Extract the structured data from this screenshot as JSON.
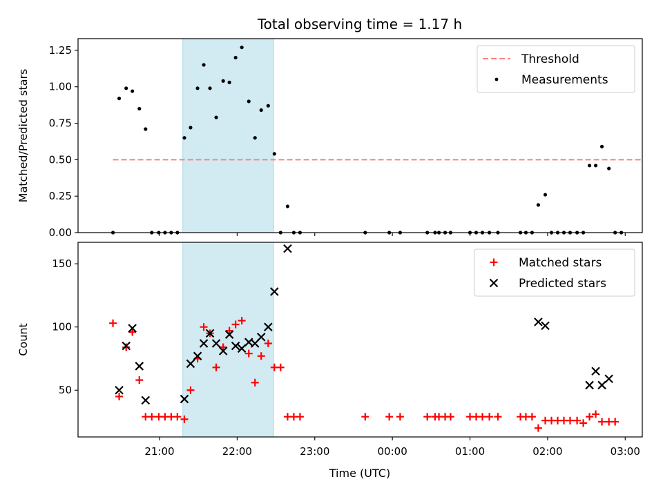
{
  "chart_data": {
    "title": "Total observing time = 1.17 h",
    "xlabel": "Time (UTC)",
    "x_unit": "hours UTC, values above 24 are after midnight",
    "xticks": [
      {
        "value": 21,
        "label": "21:00"
      },
      {
        "value": 22,
        "label": "22:00"
      },
      {
        "value": 23,
        "label": "23:00"
      },
      {
        "value": 24,
        "label": "00:00"
      },
      {
        "value": 25,
        "label": "01:00"
      },
      {
        "value": 26,
        "label": "02:00"
      },
      {
        "value": 27,
        "label": "03:00"
      }
    ],
    "xlim": [
      19.95,
      27.22
    ],
    "shaded_window": [
      21.3,
      22.47
    ],
    "shade_color": "#add8e6",
    "panels": [
      {
        "type": "scatter",
        "ylabel": "Matched/Predicted stars",
        "ylim": [
          0,
          1.33
        ],
        "yticks": [
          {
            "value": 0,
            "label": "0.00"
          },
          {
            "value": 0.25,
            "label": "0.25"
          },
          {
            "value": 0.5,
            "label": "0.50"
          },
          {
            "value": 0.75,
            "label": "0.75"
          },
          {
            "value": 1.0,
            "label": "1.00"
          },
          {
            "value": 1.25,
            "label": "1.25"
          }
        ],
        "threshold": {
          "name": "Threshold",
          "value": 0.5,
          "x_range": [
            20.4,
            27.3
          ],
          "color": "#ff7f7f"
        },
        "series": [
          {
            "name": "Measurements",
            "marker": "dot",
            "color": "#000000",
            "points": [
              [
                20.4,
                0
              ],
              [
                20.48,
                0.92
              ],
              [
                20.57,
                0.99
              ],
              [
                20.65,
                0.97
              ],
              [
                20.74,
                0.85
              ],
              [
                20.82,
                0.71
              ],
              [
                20.9,
                0
              ],
              [
                20.99,
                0
              ],
              [
                21.07,
                0
              ],
              [
                21.15,
                0
              ],
              [
                21.23,
                0
              ],
              [
                21.32,
                0.65
              ],
              [
                21.4,
                0.72
              ],
              [
                21.49,
                0.99
              ],
              [
                21.57,
                1.15
              ],
              [
                21.65,
                0.99
              ],
              [
                21.73,
                0.79
              ],
              [
                21.82,
                1.04
              ],
              [
                21.9,
                1.03
              ],
              [
                21.98,
                1.2
              ],
              [
                22.06,
                1.27
              ],
              [
                22.15,
                0.9
              ],
              [
                22.23,
                0.65
              ],
              [
                22.31,
                0.84
              ],
              [
                22.4,
                0.87
              ],
              [
                22.48,
                0.54
              ],
              [
                22.56,
                0
              ],
              [
                22.65,
                0.18
              ],
              [
                22.73,
                0
              ],
              [
                22.81,
                0
              ],
              [
                23.65,
                0
              ],
              [
                23.96,
                0
              ],
              [
                24.1,
                0
              ],
              [
                24.45,
                0
              ],
              [
                24.55,
                0
              ],
              [
                24.6,
                0
              ],
              [
                24.68,
                0
              ],
              [
                24.75,
                0
              ],
              [
                25.0,
                0
              ],
              [
                25.08,
                0
              ],
              [
                25.16,
                0
              ],
              [
                25.25,
                0
              ],
              [
                25.36,
                0
              ],
              [
                25.65,
                0
              ],
              [
                25.72,
                0
              ],
              [
                25.8,
                0
              ],
              [
                25.88,
                0.19
              ],
              [
                25.97,
                0.26
              ],
              [
                26.05,
                0
              ],
              [
                26.13,
                0
              ],
              [
                26.21,
                0
              ],
              [
                26.29,
                0
              ],
              [
                26.38,
                0
              ],
              [
                26.46,
                0
              ],
              [
                26.54,
                0.46
              ],
              [
                26.62,
                0.46
              ],
              [
                26.7,
                0.59
              ],
              [
                26.79,
                0.44
              ],
              [
                26.87,
                0
              ],
              [
                26.95,
                0
              ]
            ]
          }
        ],
        "legend": "upper right"
      },
      {
        "type": "scatter",
        "ylabel": "Count",
        "ylim": [
          13,
          167
        ],
        "yticks": [
          {
            "value": 50,
            "label": "50"
          },
          {
            "value": 100,
            "label": "100"
          },
          {
            "value": 150,
            "label": "150"
          }
        ],
        "series": [
          {
            "name": "Matched stars",
            "marker": "plus",
            "color": "#ff0000",
            "points": [
              [
                20.4,
                103
              ],
              [
                20.48,
                45
              ],
              [
                20.57,
                84
              ],
              [
                20.65,
                96
              ],
              [
                20.74,
                58
              ],
              [
                20.82,
                29
              ],
              [
                20.9,
                29
              ],
              [
                20.99,
                29
              ],
              [
                21.07,
                29
              ],
              [
                21.15,
                29
              ],
              [
                21.23,
                29
              ],
              [
                21.32,
                27
              ],
              [
                21.4,
                50
              ],
              [
                21.49,
                75
              ],
              [
                21.57,
                100
              ],
              [
                21.65,
                95
              ],
              [
                21.73,
                68
              ],
              [
                21.82,
                84
              ],
              [
                21.9,
                97
              ],
              [
                21.98,
                102
              ],
              [
                22.06,
                105
              ],
              [
                22.15,
                79
              ],
              [
                22.23,
                56
              ],
              [
                22.31,
                77
              ],
              [
                22.4,
                87
              ],
              [
                22.48,
                68
              ],
              [
                22.56,
                68
              ],
              [
                22.65,
                29
              ],
              [
                22.73,
                29
              ],
              [
                22.81,
                29
              ],
              [
                23.65,
                29
              ],
              [
                23.96,
                29
              ],
              [
                24.1,
                29
              ],
              [
                24.45,
                29
              ],
              [
                24.55,
                29
              ],
              [
                24.6,
                29
              ],
              [
                24.68,
                29
              ],
              [
                24.75,
                29
              ],
              [
                25.0,
                29
              ],
              [
                25.08,
                29
              ],
              [
                25.16,
                29
              ],
              [
                25.25,
                29
              ],
              [
                25.36,
                29
              ],
              [
                25.65,
                29
              ],
              [
                25.72,
                29
              ],
              [
                25.8,
                29
              ],
              [
                25.88,
                20
              ],
              [
                25.97,
                26
              ],
              [
                26.05,
                26
              ],
              [
                26.13,
                26
              ],
              [
                26.21,
                26
              ],
              [
                26.29,
                26
              ],
              [
                26.38,
                26
              ],
              [
                26.46,
                24
              ],
              [
                26.54,
                29
              ],
              [
                26.62,
                31
              ],
              [
                26.7,
                25
              ],
              [
                26.79,
                25
              ],
              [
                26.87,
                25
              ]
            ]
          },
          {
            "name": "Predicted stars",
            "marker": "x",
            "color": "#000000",
            "points": [
              [
                20.48,
                50
              ],
              [
                20.57,
                85
              ],
              [
                20.65,
                99
              ],
              [
                20.74,
                69
              ],
              [
                20.82,
                42
              ],
              [
                21.32,
                43
              ],
              [
                21.4,
                71
              ],
              [
                21.49,
                77
              ],
              [
                21.57,
                87
              ],
              [
                21.65,
                95
              ],
              [
                21.73,
                87
              ],
              [
                21.82,
                81
              ],
              [
                21.9,
                94
              ],
              [
                21.98,
                85
              ],
              [
                22.06,
                83
              ],
              [
                22.15,
                88
              ],
              [
                22.23,
                87
              ],
              [
                22.31,
                92
              ],
              [
                22.4,
                100
              ],
              [
                22.48,
                128
              ],
              [
                22.65,
                162
              ],
              [
                25.88,
                104
              ],
              [
                25.97,
                101
              ],
              [
                26.54,
                54
              ],
              [
                26.62,
                65
              ],
              [
                26.7,
                54
              ],
              [
                26.79,
                59
              ]
            ]
          }
        ],
        "legend": "upper right"
      }
    ]
  }
}
